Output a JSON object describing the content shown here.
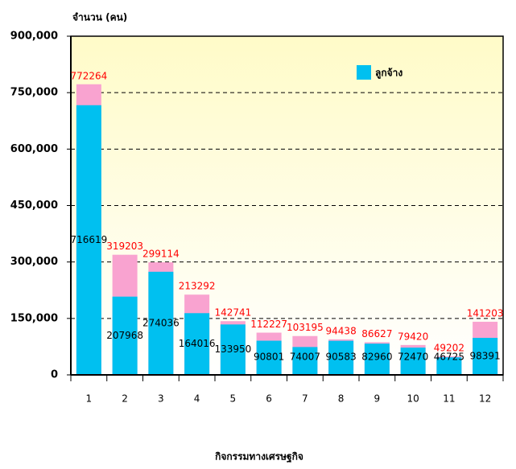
{
  "chart_data": {
    "type": "bar",
    "y_axis_label": "จำนวน (คน)",
    "x_axis_label": "กิจกรรมทางเศรษฐกิจ",
    "categories": [
      "1",
      "2",
      "3",
      "4",
      "5",
      "6",
      "7",
      "8",
      "9",
      "10",
      "11",
      "12"
    ],
    "series": [
      {
        "name": "ลูกจ้าง",
        "color": "#00c0f0",
        "values": [
          716619,
          207968,
          274036,
          164016,
          133950,
          90801,
          74007,
          90583,
          82960,
          72470,
          46725,
          98391
        ]
      }
    ],
    "totals": [
      772264,
      319203,
      299114,
      213292,
      142741,
      112227,
      103195,
      94438,
      86627,
      79420,
      49202,
      141203
    ],
    "totals_color": "#f9a3d0",
    "totals_label_color": "#ff0000",
    "ylim": [
      0,
      900000
    ],
    "yticks": [
      0,
      {
        "value": 150000,
        "label": "150,000"
      },
      {
        "value": 300000,
        "label": "300,000"
      },
      {
        "value": 450000,
        "label": "450,000"
      },
      {
        "value": 600000,
        "label": "600,000"
      },
      {
        "value": 750000,
        "label": "750,000"
      },
      {
        "value": 900000,
        "label": "900,000"
      }
    ],
    "grid": true,
    "legend": "top-right"
  }
}
